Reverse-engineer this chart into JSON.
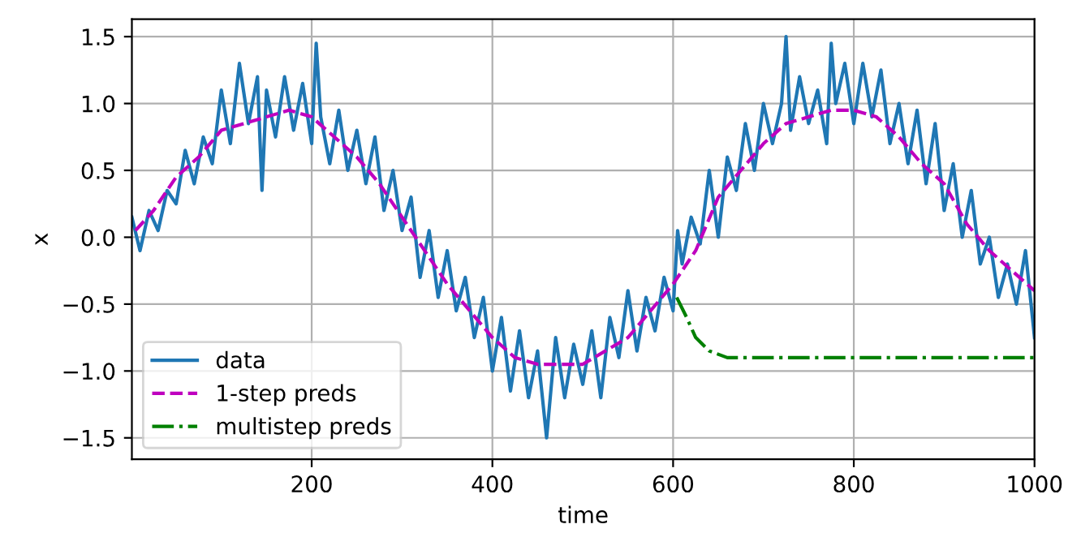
{
  "chart_data": {
    "type": "line",
    "xlabel": "time",
    "ylabel": "x",
    "xlim": [
      1,
      1000
    ],
    "ylim": [
      -1.66,
      1.63
    ],
    "xticks": [
      200,
      400,
      600,
      800,
      1000
    ],
    "yticks": [
      {
        "value": -1.5,
        "label": "−1.5"
      },
      {
        "value": -1,
        "label": "−1.0"
      },
      {
        "value": -0.5,
        "label": "−0.5"
      },
      {
        "value": 0,
        "label": "0.0"
      },
      {
        "value": 0.5,
        "label": "0.5"
      },
      {
        "value": 1,
        "label": "1.0"
      },
      {
        "value": 1.5,
        "label": "1.5"
      }
    ],
    "grid": true,
    "legend": "bottom left",
    "series": [
      {
        "name": "data",
        "color": "#1f77b4",
        "line_style": "solid",
        "x": [
          1,
          10,
          20,
          30,
          40,
          50,
          60,
          70,
          80,
          90,
          100,
          110,
          120,
          130,
          140,
          145,
          150,
          160,
          170,
          180,
          190,
          200,
          205,
          210,
          220,
          230,
          240,
          250,
          260,
          270,
          280,
          290,
          300,
          310,
          320,
          330,
          340,
          350,
          360,
          370,
          380,
          390,
          400,
          410,
          420,
          430,
          440,
          450,
          460,
          470,
          480,
          490,
          500,
          510,
          520,
          530,
          540,
          550,
          560,
          570,
          580,
          590,
          600,
          605,
          610,
          620,
          630,
          640,
          650,
          660,
          670,
          680,
          690,
          700,
          710,
          720,
          725,
          730,
          740,
          750,
          760,
          770,
          775,
          780,
          790,
          800,
          810,
          820,
          830,
          840,
          850,
          860,
          870,
          880,
          890,
          900,
          910,
          920,
          930,
          940,
          950,
          960,
          970,
          980,
          990,
          1000
        ],
        "values": [
          0.15,
          -0.1,
          0.2,
          0.05,
          0.35,
          0.25,
          0.65,
          0.4,
          0.75,
          0.55,
          1.1,
          0.7,
          1.3,
          0.85,
          1.2,
          0.35,
          1.1,
          0.75,
          1.2,
          0.8,
          1.15,
          0.7,
          1.45,
          0.9,
          0.55,
          0.95,
          0.5,
          0.8,
          0.4,
          0.75,
          0.2,
          0.5,
          0.05,
          0.3,
          -0.3,
          0.05,
          -0.45,
          -0.1,
          -0.55,
          -0.3,
          -0.75,
          -0.45,
          -1.0,
          -0.6,
          -1.15,
          -0.7,
          -1.2,
          -0.85,
          -1.5,
          -0.75,
          -1.2,
          -0.8,
          -1.1,
          -0.7,
          -1.2,
          -0.6,
          -0.9,
          -0.4,
          -0.85,
          -0.45,
          -0.7,
          -0.3,
          -0.55,
          0.05,
          -0.2,
          0.15,
          -0.05,
          0.5,
          0.0,
          0.6,
          0.35,
          0.85,
          0.5,
          1.0,
          0.7,
          1.0,
          1.5,
          0.8,
          1.2,
          0.85,
          1.1,
          0.7,
          1.45,
          1.0,
          1.3,
          0.85,
          1.3,
          0.9,
          1.25,
          0.7,
          1.0,
          0.55,
          0.95,
          0.4,
          0.85,
          0.2,
          0.55,
          0.0,
          0.35,
          -0.2,
          0.0,
          -0.45,
          -0.2,
          -0.5,
          -0.1,
          -0.75
        ]
      },
      {
        "name": "1-step preds",
        "color": "#bf00bf",
        "line_style": "dashed",
        "x": [
          5,
          25,
          50,
          75,
          100,
          125,
          150,
          175,
          200,
          225,
          250,
          275,
          300,
          325,
          350,
          375,
          400,
          425,
          450,
          475,
          500,
          525,
          550,
          575,
          600,
          625,
          650,
          675,
          700,
          725,
          750,
          775,
          800,
          825,
          850,
          875,
          900,
          925,
          950,
          975,
          1000
        ],
        "values": [
          0.05,
          0.2,
          0.45,
          0.6,
          0.8,
          0.85,
          0.9,
          0.95,
          0.9,
          0.75,
          0.6,
          0.4,
          0.15,
          -0.1,
          -0.35,
          -0.55,
          -0.75,
          -0.9,
          -0.95,
          -0.95,
          -0.95,
          -0.85,
          -0.75,
          -0.55,
          -0.35,
          -0.1,
          0.3,
          0.5,
          0.7,
          0.85,
          0.9,
          0.95,
          0.95,
          0.9,
          0.75,
          0.55,
          0.4,
          0.1,
          -0.1,
          -0.25,
          -0.4
        ]
      },
      {
        "name": "multistep preds",
        "color": "#008000",
        "line_style": "dashdot",
        "x": [
          604,
          615,
          625,
          640,
          660,
          680,
          1000
        ],
        "values": [
          -0.45,
          -0.6,
          -0.75,
          -0.85,
          -0.9,
          -0.9,
          -0.9
        ]
      }
    ]
  }
}
